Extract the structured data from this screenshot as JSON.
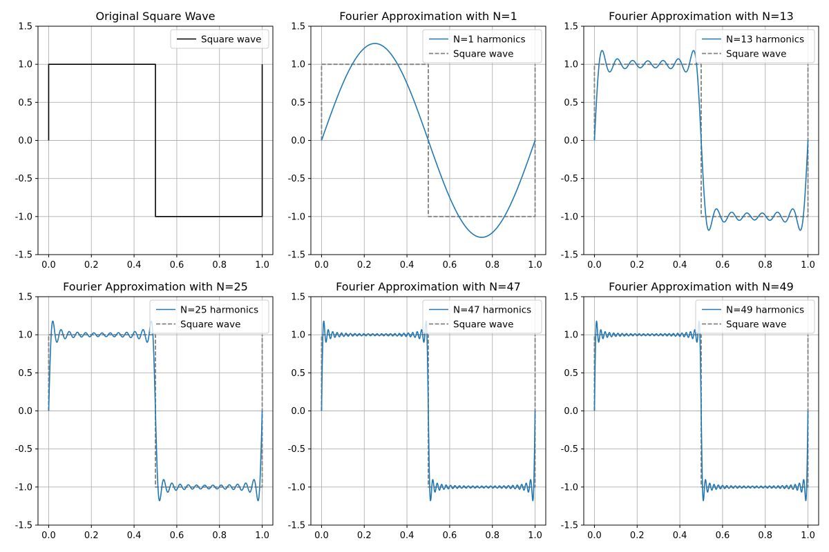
{
  "figure": {
    "background": "#ffffff"
  },
  "colors": {
    "approx": "#1f77b4",
    "square_solid": "#000000",
    "square_dashed": "#808080",
    "grid": "#b0b0b0"
  },
  "chart_data": [
    {
      "type": "line",
      "title": "Original Square Wave",
      "harmonics": 0,
      "xlim": [
        -0.05,
        1.05
      ],
      "ylim": [
        -1.5,
        1.5
      ],
      "xticks": [
        0.0,
        0.2,
        0.4,
        0.6,
        0.8,
        1.0
      ],
      "yticks": [
        -1.5,
        -1.0,
        -0.5,
        0.0,
        0.5,
        1.0,
        1.5
      ],
      "grid": true,
      "legend_position": "top-right",
      "series": [
        {
          "name": "Square wave",
          "style": "solid",
          "color": "#000000",
          "x": [
            0,
            0,
            0.5,
            0.5,
            1,
            1
          ],
          "y": [
            0,
            1,
            1,
            -1,
            -1,
            1
          ]
        }
      ]
    },
    {
      "type": "line",
      "title": "Fourier Approximation with N=1",
      "harmonics": 1,
      "xlim": [
        -0.05,
        1.05
      ],
      "ylim": [
        -1.5,
        1.5
      ],
      "xticks": [
        0.0,
        0.2,
        0.4,
        0.6,
        0.8,
        1.0
      ],
      "yticks": [
        -1.5,
        -1.0,
        -0.5,
        0.0,
        0.5,
        1.0,
        1.5
      ],
      "grid": true,
      "legend_position": "top-right",
      "series": [
        {
          "name": "N=1 harmonics",
          "style": "solid",
          "color": "#1f77b4"
        },
        {
          "name": "Square wave",
          "style": "dashed",
          "color": "#808080",
          "x": [
            0,
            0,
            0.5,
            0.5,
            1,
            1
          ],
          "y": [
            0,
            1,
            1,
            -1,
            -1,
            1
          ]
        }
      ]
    },
    {
      "type": "line",
      "title": "Fourier Approximation with N=13",
      "harmonics": 13,
      "xlim": [
        -0.05,
        1.05
      ],
      "ylim": [
        -1.5,
        1.5
      ],
      "xticks": [
        0.0,
        0.2,
        0.4,
        0.6,
        0.8,
        1.0
      ],
      "yticks": [
        -1.5,
        -1.0,
        -0.5,
        0.0,
        0.5,
        1.0,
        1.5
      ],
      "grid": true,
      "legend_position": "top-right",
      "series": [
        {
          "name": "N=13 harmonics",
          "style": "solid",
          "color": "#1f77b4"
        },
        {
          "name": "Square wave",
          "style": "dashed",
          "color": "#808080",
          "x": [
            0,
            0,
            0.5,
            0.5,
            1,
            1
          ],
          "y": [
            0,
            1,
            1,
            -1,
            -1,
            1
          ]
        }
      ]
    },
    {
      "type": "line",
      "title": "Fourier Approximation with N=25",
      "harmonics": 25,
      "xlim": [
        -0.05,
        1.05
      ],
      "ylim": [
        -1.5,
        1.5
      ],
      "xticks": [
        0.0,
        0.2,
        0.4,
        0.6,
        0.8,
        1.0
      ],
      "yticks": [
        -1.5,
        -1.0,
        -0.5,
        0.0,
        0.5,
        1.0,
        1.5
      ],
      "grid": true,
      "legend_position": "top-right",
      "series": [
        {
          "name": "N=25 harmonics",
          "style": "solid",
          "color": "#1f77b4"
        },
        {
          "name": "Square wave",
          "style": "dashed",
          "color": "#808080",
          "x": [
            0,
            0,
            0.5,
            0.5,
            1,
            1
          ],
          "y": [
            0,
            1,
            1,
            -1,
            -1,
            1
          ]
        }
      ]
    },
    {
      "type": "line",
      "title": "Fourier Approximation with N=47",
      "harmonics": 47,
      "xlim": [
        -0.05,
        1.05
      ],
      "ylim": [
        -1.5,
        1.5
      ],
      "xticks": [
        0.0,
        0.2,
        0.4,
        0.6,
        0.8,
        1.0
      ],
      "yticks": [
        -1.5,
        -1.0,
        -0.5,
        0.0,
        0.5,
        1.0,
        1.5
      ],
      "grid": true,
      "legend_position": "top-right",
      "series": [
        {
          "name": "N=47 harmonics",
          "style": "solid",
          "color": "#1f77b4"
        },
        {
          "name": "Square wave",
          "style": "dashed",
          "color": "#808080",
          "x": [
            0,
            0,
            0.5,
            0.5,
            1,
            1
          ],
          "y": [
            0,
            1,
            1,
            -1,
            -1,
            1
          ]
        }
      ]
    },
    {
      "type": "line",
      "title": "Fourier Approximation with N=49",
      "harmonics": 49,
      "xlim": [
        -0.05,
        1.05
      ],
      "ylim": [
        -1.5,
        1.5
      ],
      "xticks": [
        0.0,
        0.2,
        0.4,
        0.6,
        0.8,
        1.0
      ],
      "yticks": [
        -1.5,
        -1.0,
        -0.5,
        0.0,
        0.5,
        1.0,
        1.5
      ],
      "grid": true,
      "legend_position": "top-right",
      "series": [
        {
          "name": "N=49 harmonics",
          "style": "solid",
          "color": "#1f77b4"
        },
        {
          "name": "Square wave",
          "style": "dashed",
          "color": "#808080",
          "x": [
            0,
            0,
            0.5,
            0.5,
            1,
            1
          ],
          "y": [
            0,
            1,
            1,
            -1,
            -1,
            1
          ]
        }
      ]
    }
  ]
}
